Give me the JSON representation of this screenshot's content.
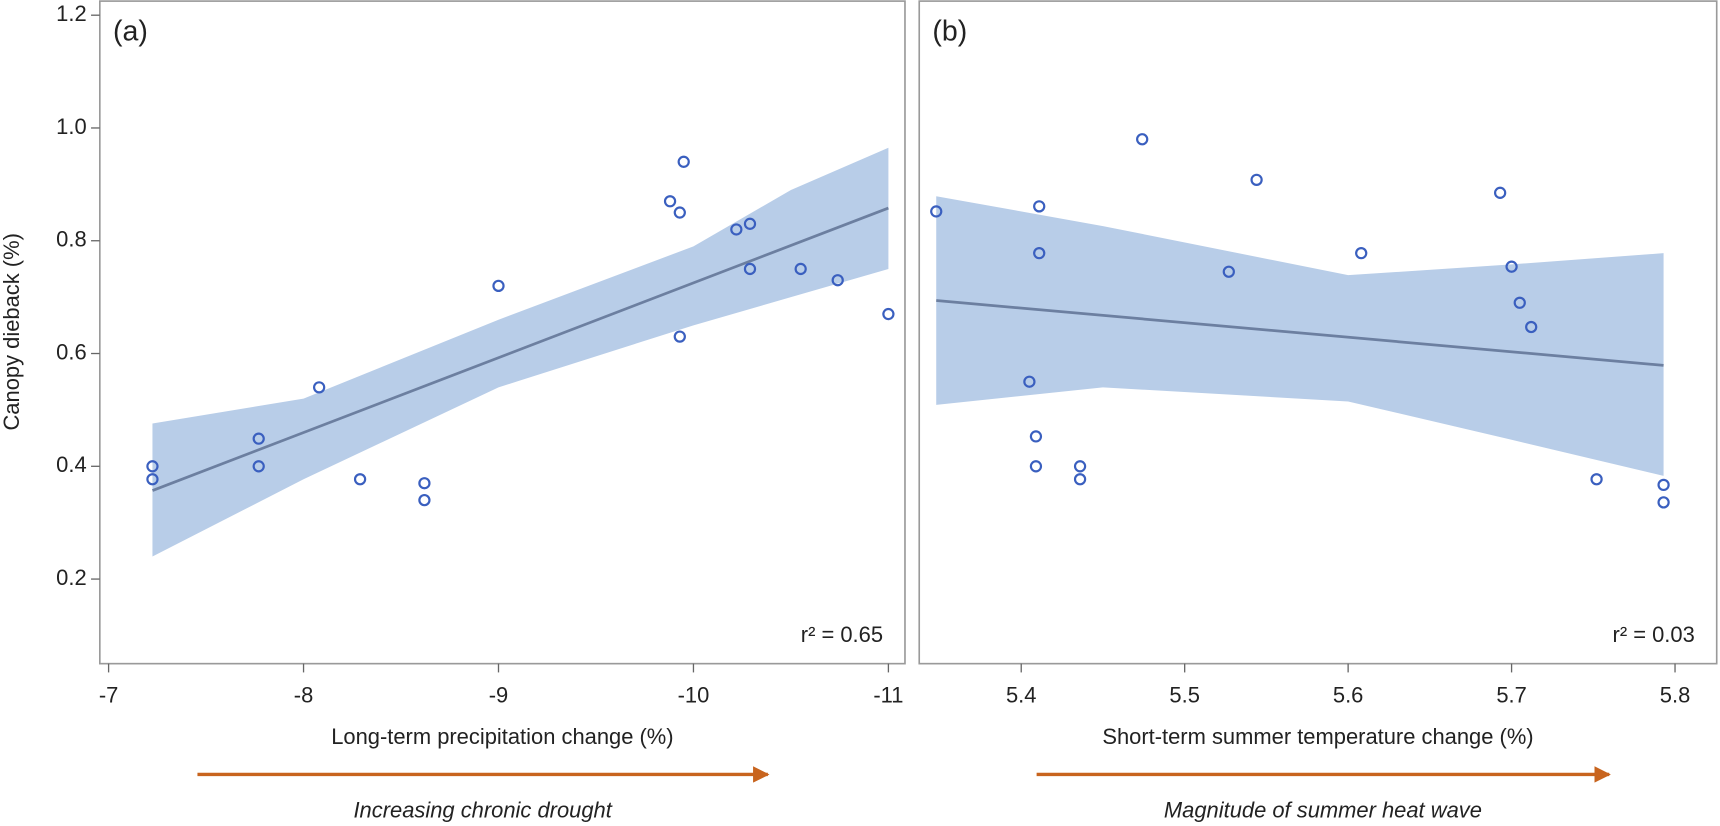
{
  "chart_data": [
    {
      "type": "scatter",
      "panel_label": "(a)",
      "x_label": "Long-term precipitation change (%)",
      "y_label": "Canopy dieback (%)",
      "annotation": "r² = 0.65",
      "arrow_caption": "Increasing chronic drought",
      "arrow_color": "#c8641e",
      "xlim": [
        -6.955,
        -11.085
      ],
      "xticks": [
        -7,
        -8,
        -9,
        -10,
        -11
      ],
      "ylim": [
        0.05,
        1.225
      ],
      "yticks": [
        0.2,
        0.4,
        0.6,
        0.8,
        {
          "value": 1,
          "label": "1.0"
        },
        1.2
      ],
      "color": "#3a5fbf",
      "band_color": "#b8cde8",
      "line_color": "#6c7fa0",
      "x": [
        -7.225,
        -7.225,
        -7.77,
        -7.77,
        -8.08,
        -8.29,
        -8.62,
        -8.62,
        -9.0,
        -9.88,
        -9.93,
        -9.95,
        -9.93,
        -10.22,
        -10.29,
        -10.29,
        -10.55,
        -10.74,
        -11.0
      ],
      "values": [
        0.4,
        0.377,
        0.449,
        0.4,
        0.54,
        0.377,
        0.37,
        0.34,
        0.72,
        0.87,
        0.85,
        0.94,
        0.63,
        0.82,
        0.83,
        0.75,
        0.75,
        0.73,
        0.67
      ],
      "fit": {
        "x": [
          -7.225,
          -11.0
        ],
        "values": [
          0.357,
          0.858
        ]
      },
      "band": {
        "x": [
          -7.225,
          -8.0,
          -9.0,
          -10.0,
          -10.5,
          -11.0
        ],
        "lower": [
          0.24,
          0.377,
          0.54,
          0.65,
          0.7,
          0.75
        ],
        "upper": [
          0.476,
          0.52,
          0.66,
          0.79,
          0.89,
          0.965
        ]
      }
    },
    {
      "type": "scatter",
      "panel_label": "(b)",
      "x_label": "Short-term summer temperature change (%)",
      "annotation": "r² = 0.03",
      "arrow_caption": "Magnitude of summer heat wave",
      "arrow_color": "#c8641e",
      "xlim": [
        5.3376,
        5.8255
      ],
      "xticks": [
        5.4,
        5.5,
        5.6,
        5.7,
        5.8
      ],
      "ylim": [
        0.05,
        1.225
      ],
      "color": "#3a5fbf",
      "band_color": "#b8cde8",
      "line_color": "#6c7fa0",
      "x": [
        5.348,
        5.474,
        5.411,
        5.544,
        5.411,
        5.527,
        5.608,
        5.693,
        5.7,
        5.705,
        5.712,
        5.405,
        5.409,
        5.409,
        5.436,
        5.436,
        5.752,
        5.793,
        5.793
      ],
      "values": [
        0.852,
        0.98,
        0.861,
        0.908,
        0.778,
        0.745,
        0.778,
        0.885,
        0.754,
        0.69,
        0.647,
        0.55,
        0.453,
        0.4,
        0.4,
        0.377,
        0.377,
        0.367,
        0.336
      ],
      "fit": {
        "x": [
          5.348,
          5.793
        ],
        "values": [
          0.694,
          0.579
        ]
      },
      "band": {
        "x": [
          5.348,
          5.45,
          5.6,
          5.7,
          5.793
        ],
        "lower": [
          0.509,
          0.54,
          0.515,
          0.447,
          0.383
        ],
        "upper": [
          0.879,
          0.826,
          0.739,
          0.758,
          0.778
        ]
      }
    }
  ]
}
